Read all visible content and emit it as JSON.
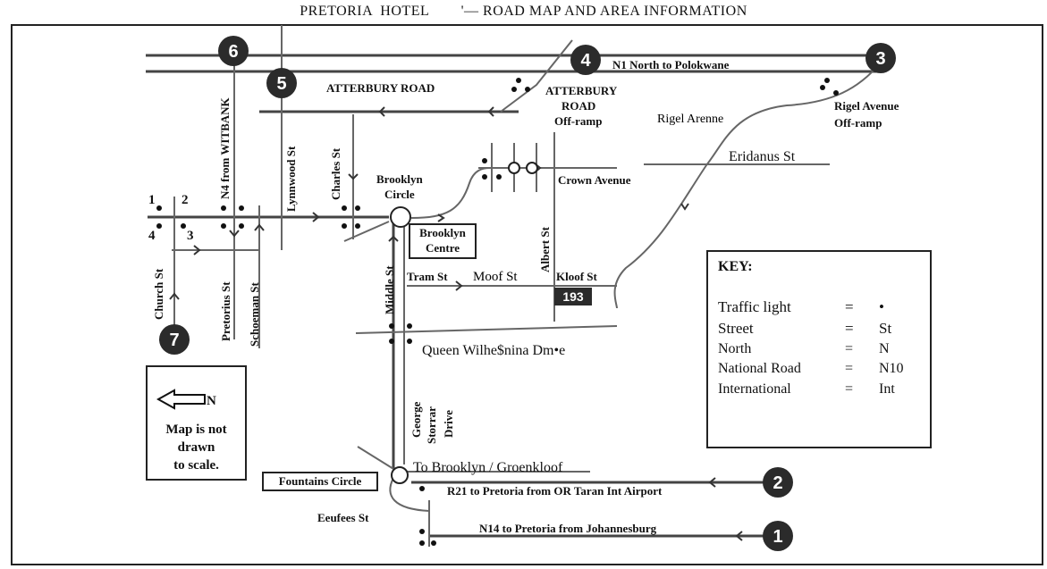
{
  "title": "PRETORIA  HOTEL        '— ROAD MAP AND AREA INFORMATION",
  "roads": {
    "n1": "N1 North to Polokwane",
    "atterbury_road": "ATTERBURY ROAD",
    "atterbury_offramp": [
      "ATTERBURY",
      "ROAD",
      "Off-ramp"
    ],
    "rigel_offramp": [
      "Rigel Avenue",
      "Off-ramp"
    ],
    "rigel_arenne": "Rigel Arenne",
    "eridanus": "Eridanus St",
    "crown_avenue": "Crown Avenue",
    "brooklyn_circle": [
      "Brooklyn",
      "Circle"
    ],
    "brooklyn_centre": [
      "Brooklyn",
      "Centre"
    ],
    "albert": "Albert St",
    "tram": "Tram St",
    "moof": "Moof St",
    "kloof": "Kloof St",
    "route_193": "193",
    "middle": "Middle St",
    "queen": "Queen Wilhe$nina Dm•e",
    "george": [
      "George",
      "Storrar",
      "Drive"
    ],
    "to_brooklyn": "To Brooklyn / Groenkloof",
    "r21": "R21 to Pretoria from OR Taran Int Airport",
    "n14": "N14 to Pretoria from Johannesburg",
    "eeufees": "Eeufees St",
    "fountains_circle": "Fountains Circle",
    "church": "Church St",
    "pretorius": "Pretorius St",
    "schoeman": "Schoeman St",
    "n4": "N4 from WITBANK",
    "lynnwood": "Lynnwood St",
    "charles": "Charles St"
  },
  "markers": [
    "1",
    "2",
    "3",
    "4",
    "5",
    "6",
    "7"
  ],
  "corner_numbers": [
    "1",
    "2",
    "3",
    "4"
  ],
  "scale_box": {
    "north": "N",
    "note": [
      "Map is not",
      "drawn",
      "to scale."
    ]
  },
  "key": {
    "title": "KEY:",
    "rows": [
      {
        "label": "Traffic light",
        "eq": "=",
        "value": "•"
      },
      {
        "label": "Street",
        "eq": "=",
        "value": "St"
      },
      {
        "label": "North",
        "eq": "=",
        "value": "N"
      },
      {
        "label": "National Road",
        "eq": "=",
        "value": "N10"
      },
      {
        "label": "International",
        "eq": "=",
        "value": "Int"
      }
    ]
  },
  "colors": {
    "marker_fill": "#2b2b2b",
    "road": "#444444",
    "underline": "#dd3333"
  }
}
